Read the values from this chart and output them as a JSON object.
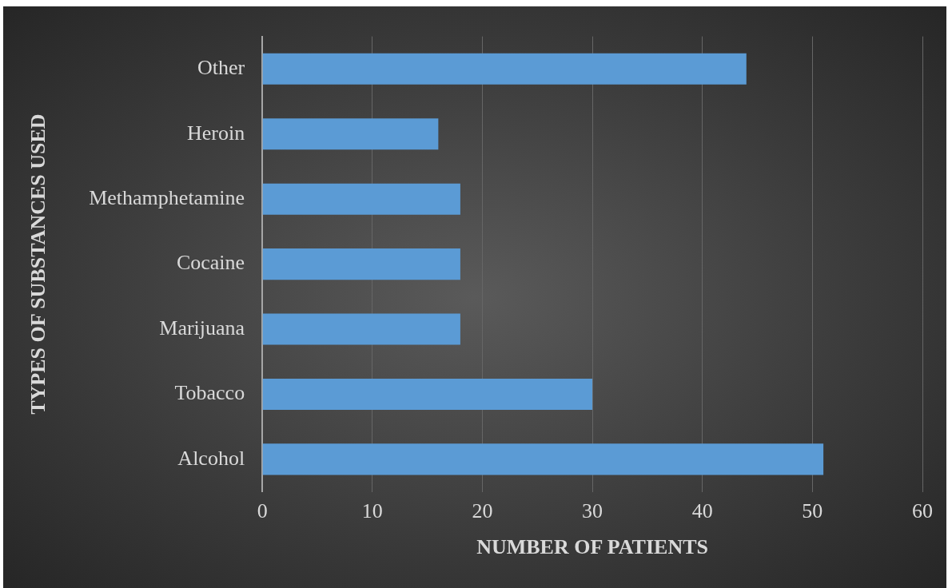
{
  "chart_data": {
    "type": "bar",
    "orientation": "horizontal",
    "xlabel": "NUMBER OF PATIENTS",
    "ylabel": "TYPES OF SUBSTANCES USED",
    "categories": [
      "Other",
      "Heroin",
      "Methamphetamine",
      "Cocaine",
      "Marijuana",
      "Tobacco",
      "Alcohol"
    ],
    "values": [
      44,
      16,
      18,
      18,
      18,
      30,
      51
    ],
    "color": "#5b9bd5",
    "xlim": [
      0,
      60
    ],
    "xticks": [
      0,
      10,
      20,
      30,
      40,
      50,
      60
    ],
    "grid": "x",
    "legend": false
  }
}
